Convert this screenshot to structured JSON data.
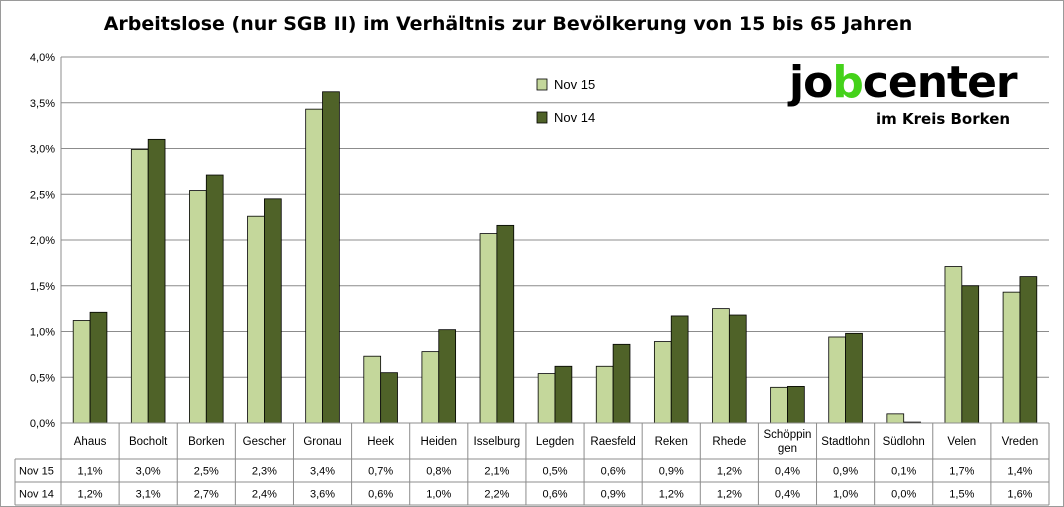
{
  "chart_data": {
    "type": "bar",
    "title": "Arbeitslose (nur SGB II) im Verhältnis zur Bevölkerung von 15 bis 65 Jahren",
    "categories": [
      "Ahaus",
      "Bocholt",
      "Borken",
      "Gescher",
      "Gronau",
      "Heek",
      "Heiden",
      "Isselburg",
      "Legden",
      "Raesfeld",
      "Reken",
      "Rhede",
      "Schöppingen",
      "Stadtlohn",
      "Südlohn",
      "Velen",
      "Vreden"
    ],
    "category_labels": [
      [
        "Ahaus"
      ],
      [
        "Bocholt"
      ],
      [
        "Borken"
      ],
      [
        "Gescher"
      ],
      [
        "Gronau"
      ],
      [
        "Heek"
      ],
      [
        "Heiden"
      ],
      [
        "Isselburg"
      ],
      [
        "Legden"
      ],
      [
        "Raesfeld"
      ],
      [
        "Reken"
      ],
      [
        "Rhede"
      ],
      [
        "Schöppin",
        "gen"
      ],
      [
        "Stadtlohn"
      ],
      [
        "Südlohn"
      ],
      [
        "Velen"
      ],
      [
        "Vreden"
      ]
    ],
    "series": [
      {
        "name": "Nov 15",
        "color": "#c4d79b",
        "values": [
          1.12,
          2.99,
          2.54,
          2.26,
          3.43,
          0.73,
          0.78,
          2.07,
          0.54,
          0.62,
          0.89,
          1.25,
          0.39,
          0.94,
          0.1,
          1.71,
          1.43
        ],
        "labels": [
          "1,1%",
          "3,0%",
          "2,5%",
          "2,3%",
          "3,4%",
          "0,7%",
          "0,8%",
          "2,1%",
          "0,5%",
          "0,6%",
          "0,9%",
          "1,2%",
          "0,4%",
          "0,9%",
          "0,1%",
          "1,7%",
          "1,4%"
        ]
      },
      {
        "name": "Nov 14",
        "color": "#4f6228",
        "values": [
          1.21,
          3.1,
          2.71,
          2.45,
          3.62,
          0.55,
          1.02,
          2.16,
          0.62,
          0.86,
          1.17,
          1.18,
          0.4,
          0.98,
          0.01,
          1.5,
          1.6
        ],
        "labels": [
          "1,2%",
          "3,1%",
          "2,7%",
          "2,4%",
          "3,6%",
          "0,6%",
          "1,0%",
          "2,2%",
          "0,6%",
          "0,9%",
          "1,2%",
          "1,2%",
          "0,4%",
          "1,0%",
          "0,0%",
          "1,5%",
          "1,6%"
        ]
      }
    ],
    "y_ticks": [
      "0,0%",
      "0,5%",
      "1,0%",
      "1,5%",
      "2,0%",
      "2,5%",
      "3,0%",
      "3,5%",
      "4,0%"
    ],
    "ylim": [
      0,
      4.0
    ],
    "y_unit": "%",
    "grid": true,
    "legend_position": "top-right",
    "data_table": true
  },
  "logo": {
    "word_start": "jo",
    "word_b": "b",
    "word_end": "center",
    "subtitle": "im Kreis Borken",
    "brand_color": "#44d21a"
  }
}
